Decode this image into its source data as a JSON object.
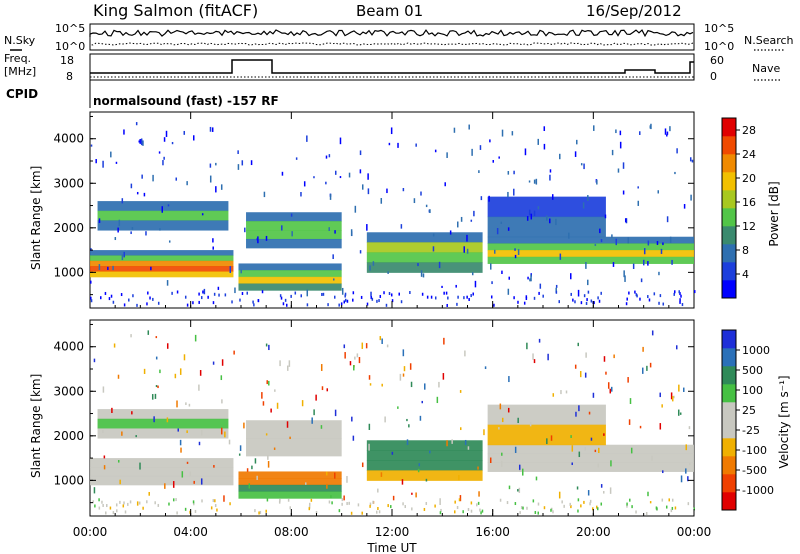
{
  "header": {
    "station": "King Salmon (fitACF)",
    "beam": "Beam 01",
    "date": "16/Sep/2012"
  },
  "noise_panel": {
    "left_label": "N.Sky",
    "right_label": "N.Search",
    "left_ticks": [
      "10^5",
      "10^0"
    ],
    "right_ticks": [
      "10^5",
      "10^0"
    ]
  },
  "freq_panel": {
    "left_label_1": "Freq.",
    "left_label_2": "[MHz]",
    "right_label": "Nave",
    "left_ticks": [
      "18",
      "8"
    ],
    "right_ticks": [
      "60",
      "0"
    ]
  },
  "cpid": {
    "label": "CPID",
    "text": "normalsound (fast) -157 RF"
  },
  "colors": {
    "power": [
      "#0000ff",
      "#1c3fdc",
      "#2e6fb0",
      "#3a8a6e",
      "#52c548",
      "#a8c820",
      "#f2c000",
      "#f08a00",
      "#f04a00",
      "#e00000"
    ],
    "velocity": [
      "#1e2fd8",
      "#2a70b8",
      "#2f8a58",
      "#46c043",
      "#c8c8c0",
      "#c8c8c0",
      "#f0b000",
      "#f07a00",
      "#f04000",
      "#e00000"
    ]
  },
  "chart_data": [
    {
      "type": "heatmap",
      "name": "power",
      "ylabel": "Slant Range [km]",
      "y_ticks": [
        "1000",
        "2000",
        "3000",
        "4000"
      ],
      "ylim": [
        200,
        4600
      ],
      "colorbar_label": "Power [dB]",
      "colorbar_ticks": [
        "4",
        "8",
        "12",
        "16",
        "20",
        "24",
        "28"
      ],
      "colorbar_range": [
        0,
        30
      ],
      "bands": [
        {
          "t0": 0.0,
          "t1": 5.7,
          "r0": 900,
          "r1": 1500,
          "values": [
            8,
            14,
            22,
            26,
            20
          ]
        },
        {
          "t0": 0.3,
          "t1": 5.5,
          "r0": 1950,
          "r1": 2600,
          "values": [
            6,
            12,
            8
          ]
        },
        {
          "t0": 5.9,
          "t1": 10.0,
          "r0": 600,
          "r1": 1200,
          "values": [
            6,
            14,
            18,
            10
          ]
        },
        {
          "t0": 6.2,
          "t1": 10.0,
          "r0": 1550,
          "r1": 2350,
          "values": [
            6,
            12,
            14,
            8
          ]
        },
        {
          "t0": 11.0,
          "t1": 15.6,
          "r0": 1000,
          "r1": 1900,
          "values": [
            8,
            16,
            14,
            10
          ]
        },
        {
          "t0": 15.8,
          "t1": 24.0,
          "r0": 1200,
          "r1": 1800,
          "values": [
            6,
            14,
            20,
            12
          ]
        },
        {
          "t0": 15.8,
          "t1": 20.5,
          "r0": 1800,
          "r1": 2700,
          "values": [
            4,
            8
          ]
        }
      ]
    },
    {
      "type": "heatmap",
      "name": "velocity",
      "ylabel": "Slant Range [km]",
      "y_ticks": [
        "1000",
        "2000",
        "3000",
        "4000"
      ],
      "ylim": [
        200,
        4600
      ],
      "xlabel": "Time UT",
      "x_ticks": [
        "00:00",
        "04:00",
        "08:00",
        "12:00",
        "16:00",
        "20:00",
        "00:00"
      ],
      "xlim": [
        0,
        24
      ],
      "colorbar_label": "Velocity [m s⁻¹]",
      "colorbar_ticks": [
        "1000",
        "500",
        "100",
        "25",
        "-25",
        "-100",
        "-500",
        "-1000"
      ],
      "bands": [
        {
          "t0": 0.0,
          "t1": 5.7,
          "r0": 900,
          "r1": 1500,
          "values": [
            0,
            0,
            0
          ]
        },
        {
          "t0": 0.3,
          "t1": 5.5,
          "r0": 1950,
          "r1": 2600,
          "values": [
            0,
            30,
            0
          ]
        },
        {
          "t0": 5.9,
          "t1": 10.0,
          "r0": 600,
          "r1": 1200,
          "values": [
            -150,
            -120,
            120,
            80
          ]
        },
        {
          "t0": 6.2,
          "t1": 10.0,
          "r0": 1550,
          "r1": 2350,
          "values": [
            0,
            0
          ]
        },
        {
          "t0": 11.0,
          "t1": 15.6,
          "r0": 1000,
          "r1": 1900,
          "values": [
            200,
            400,
            100,
            -80
          ]
        },
        {
          "t0": 15.8,
          "t1": 24.0,
          "r0": 1200,
          "r1": 1800,
          "values": [
            0,
            0,
            0
          ]
        },
        {
          "t0": 15.8,
          "t1": 20.5,
          "r0": 1800,
          "r1": 2700,
          "values": [
            0,
            -60
          ]
        }
      ]
    }
  ]
}
